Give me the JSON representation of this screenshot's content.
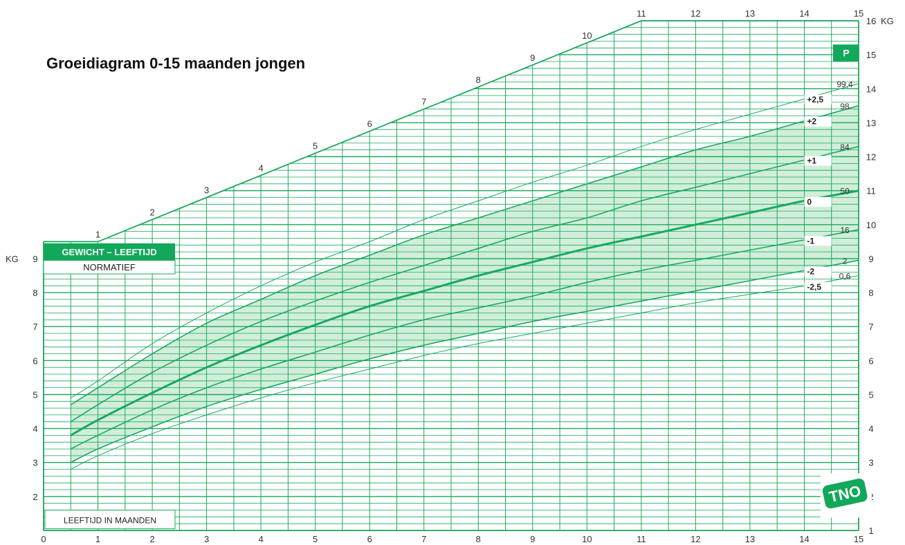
{
  "title": "Groeidiagram 0-15 maanden jongen",
  "badge": {
    "title": "GEWICHT – LEEFTIJD",
    "subtitle": "NORMATIEF"
  },
  "xlabel_box": "LEEFTIJD IN MAANDEN",
  "percentile_header": "P",
  "logo_text": "TNO",
  "colors": {
    "grid": "#1aa85a",
    "band": "#c9ebd3",
    "accent": "#12a85a",
    "curve": "#18a862"
  },
  "chart_data": {
    "type": "line",
    "xlabel": "LEEFTIJD IN MAANDEN",
    "ylabel": "KG",
    "ylabel_right": "KG",
    "xlim": [
      0,
      15
    ],
    "ylim": [
      1,
      16
    ],
    "x_ticks": [
      0,
      1,
      2,
      3,
      4,
      5,
      6,
      7,
      8,
      9,
      10,
      11,
      12,
      13,
      14,
      15
    ],
    "y_ticks_left": [
      2,
      3,
      4,
      5,
      6,
      7,
      8,
      9
    ],
    "y_ticks_right": [
      1,
      2,
      3,
      4,
      5,
      6,
      7,
      8,
      9,
      10,
      11,
      12,
      13,
      14,
      15,
      16
    ],
    "upper_diagonal_ticks": [
      1,
      2,
      3,
      4,
      5,
      6,
      7,
      8,
      9,
      10,
      11,
      12,
      13,
      14,
      15
    ],
    "band_between": [
      "+2",
      "-2"
    ],
    "x": [
      0.5,
      1,
      2,
      3,
      4,
      5,
      6,
      7,
      8,
      9,
      10,
      11,
      12,
      13,
      14,
      15
    ],
    "series": [
      {
        "name": "+2,5",
        "percentile": "99,4",
        "values": [
          4.9,
          5.4,
          6.5,
          7.4,
          8.2,
          8.9,
          9.5,
          10.15,
          10.7,
          11.25,
          11.75,
          12.3,
          12.8,
          13.25,
          13.7,
          14.15
        ]
      },
      {
        "name": "+2",
        "percentile": "98",
        "values": [
          4.7,
          5.2,
          6.2,
          7.1,
          7.8,
          8.5,
          9.1,
          9.7,
          10.2,
          10.7,
          11.2,
          11.7,
          12.2,
          12.6,
          13.05,
          13.5
        ]
      },
      {
        "name": "+1",
        "percentile": "84",
        "values": [
          4.2,
          4.7,
          5.65,
          6.45,
          7.15,
          7.75,
          8.3,
          8.8,
          9.3,
          9.8,
          10.2,
          10.7,
          11.1,
          11.5,
          11.9,
          12.3
        ]
      },
      {
        "name": "0",
        "percentile": "50",
        "values": [
          3.8,
          4.25,
          5.05,
          5.8,
          6.45,
          7.05,
          7.6,
          8.05,
          8.5,
          8.9,
          9.3,
          9.65,
          10.0,
          10.35,
          10.7,
          11.0
        ]
      },
      {
        "name": "-1",
        "percentile": "16",
        "values": [
          3.4,
          3.8,
          4.55,
          5.2,
          5.75,
          6.25,
          6.75,
          7.2,
          7.55,
          7.9,
          8.3,
          8.65,
          8.95,
          9.25,
          9.55,
          9.85
        ]
      },
      {
        "name": "-2",
        "percentile": "2",
        "values": [
          3.0,
          3.4,
          4.05,
          4.65,
          5.15,
          5.6,
          6.05,
          6.45,
          6.8,
          7.15,
          7.45,
          7.75,
          8.05,
          8.35,
          8.65,
          8.95
        ]
      },
      {
        "name": "-2,5",
        "percentile": "0,6",
        "values": [
          2.8,
          3.2,
          3.85,
          4.4,
          4.9,
          5.35,
          5.75,
          6.15,
          6.5,
          6.8,
          7.1,
          7.4,
          7.7,
          7.95,
          8.2,
          8.5
        ]
      }
    ]
  }
}
